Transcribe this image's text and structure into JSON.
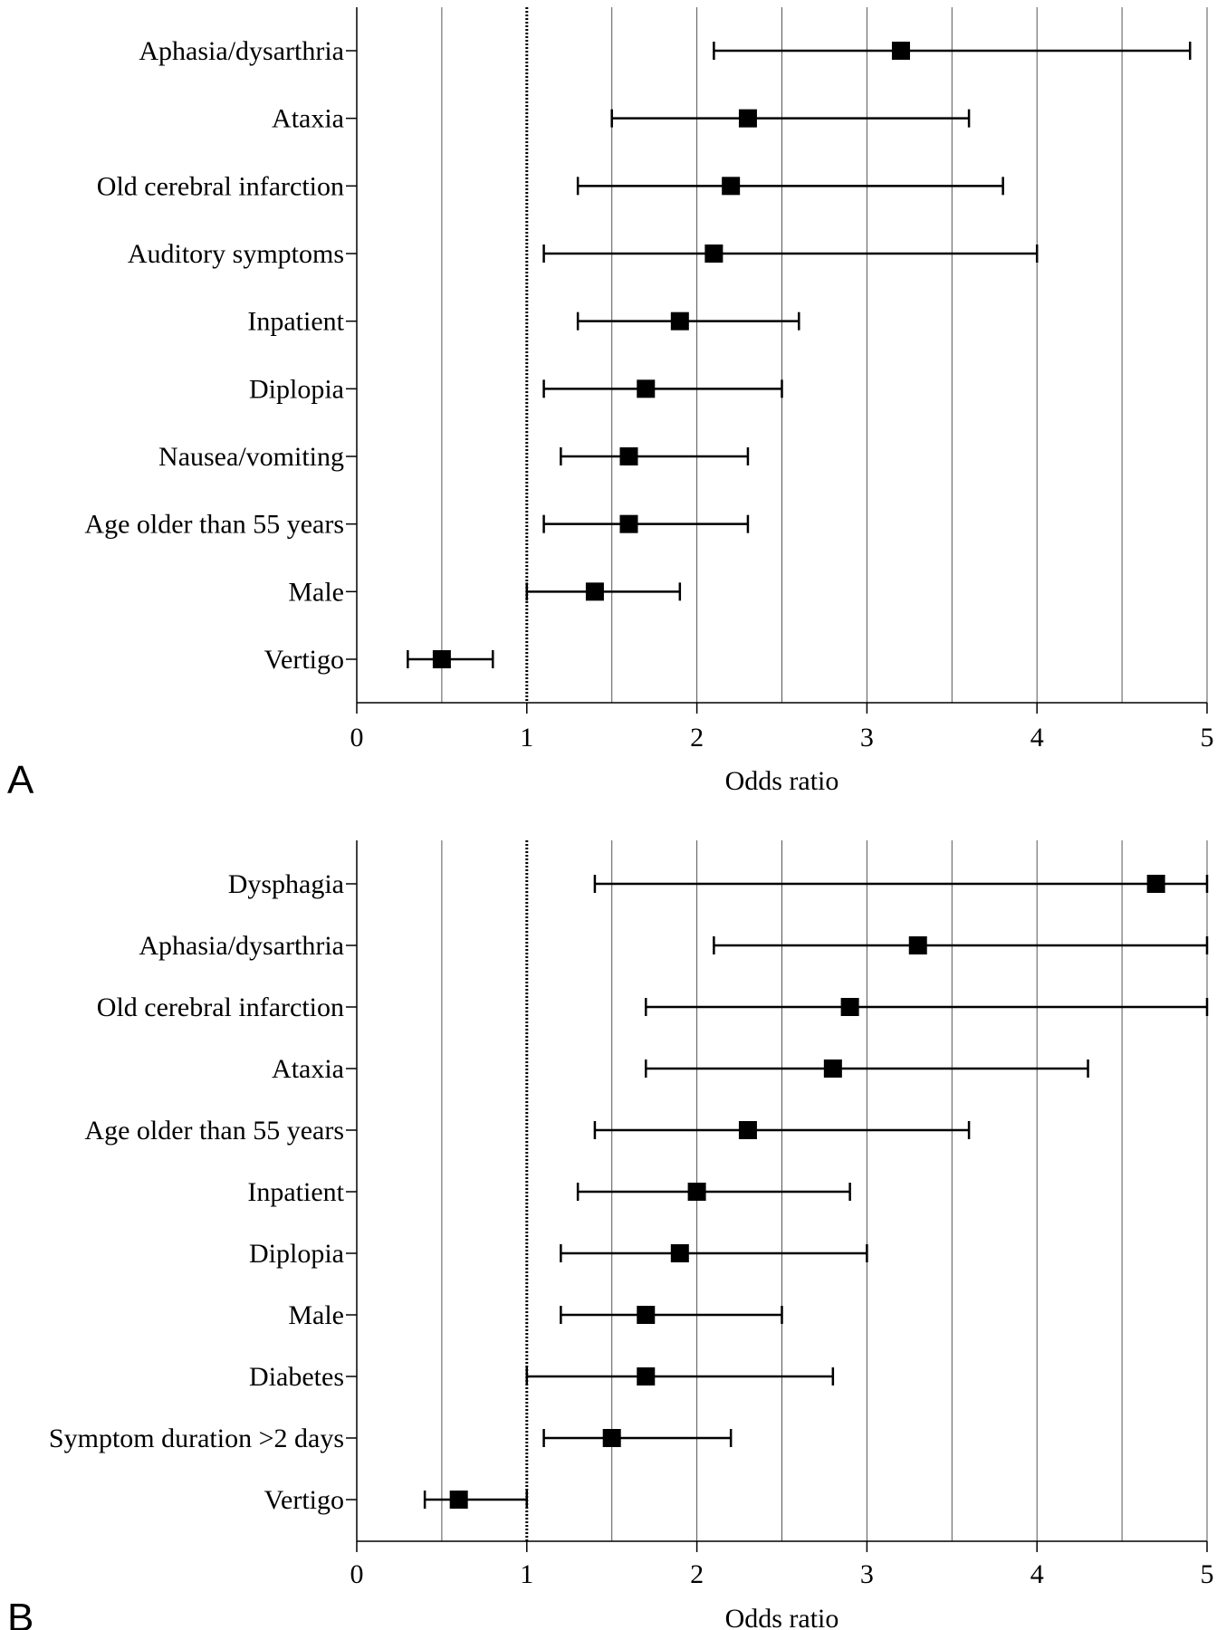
{
  "chart_data": [
    {
      "type": "forest",
      "panel": "A",
      "xlabel": "Odds ratio",
      "xlim": [
        0,
        5
      ],
      "xticks": [
        0,
        1,
        2,
        3,
        4,
        5
      ],
      "reference_line": 1,
      "grid": "vertical at every 0.5",
      "rows": [
        {
          "label": "Aphasia/dysarthria",
          "or": 3.2,
          "ci_low": 2.1,
          "ci_high": 4.9
        },
        {
          "label": "Ataxia",
          "or": 2.3,
          "ci_low": 1.5,
          "ci_high": 3.6
        },
        {
          "label": "Old cerebral infarction",
          "or": 2.2,
          "ci_low": 1.3,
          "ci_high": 3.8
        },
        {
          "label": "Auditory symptoms",
          "or": 2.1,
          "ci_low": 1.1,
          "ci_high": 4.0
        },
        {
          "label": "Inpatient",
          "or": 1.9,
          "ci_low": 1.3,
          "ci_high": 2.6
        },
        {
          "label": "Diplopia",
          "or": 1.7,
          "ci_low": 1.1,
          "ci_high": 2.5
        },
        {
          "label": "Nausea/vomiting",
          "or": 1.6,
          "ci_low": 1.2,
          "ci_high": 2.3
        },
        {
          "label": "Age older than 55 years",
          "or": 1.6,
          "ci_low": 1.1,
          "ci_high": 2.3
        },
        {
          "label": "Male",
          "or": 1.4,
          "ci_low": 1.0,
          "ci_high": 1.9
        },
        {
          "label": "Vertigo",
          "or": 0.5,
          "ci_low": 0.3,
          "ci_high": 0.8
        }
      ]
    },
    {
      "type": "forest",
      "panel": "B",
      "xlabel": "Odds ratio",
      "xlim": [
        0,
        5
      ],
      "xticks": [
        0,
        1,
        2,
        3,
        4,
        5
      ],
      "reference_line": 1,
      "grid": "vertical at every 0.5",
      "rows": [
        {
          "label": "Dysphagia",
          "or": 4.7,
          "ci_low": 1.4,
          "ci_high": 5.0
        },
        {
          "label": "Aphasia/dysarthria",
          "or": 3.3,
          "ci_low": 2.1,
          "ci_high": 5.0
        },
        {
          "label": "Old cerebral infarction",
          "or": 2.9,
          "ci_low": 1.7,
          "ci_high": 5.0
        },
        {
          "label": "Ataxia",
          "or": 2.8,
          "ci_low": 1.7,
          "ci_high": 4.3
        },
        {
          "label": "Age older than 55 years",
          "or": 2.3,
          "ci_low": 1.4,
          "ci_high": 3.6
        },
        {
          "label": "Inpatient",
          "or": 2.0,
          "ci_low": 1.3,
          "ci_high": 2.9
        },
        {
          "label": "Diplopia",
          "or": 1.9,
          "ci_low": 1.2,
          "ci_high": 3.0
        },
        {
          "label": "Male",
          "or": 1.7,
          "ci_low": 1.2,
          "ci_high": 2.5
        },
        {
          "label": "Diabetes",
          "or": 1.7,
          "ci_low": 1.0,
          "ci_high": 2.8
        },
        {
          "label": "Symptom duration >2 days",
          "or": 1.5,
          "ci_low": 1.1,
          "ci_high": 2.2
        },
        {
          "label": "Vertigo",
          "or": 0.6,
          "ci_low": 0.4,
          "ci_high": 1.0
        }
      ]
    }
  ]
}
